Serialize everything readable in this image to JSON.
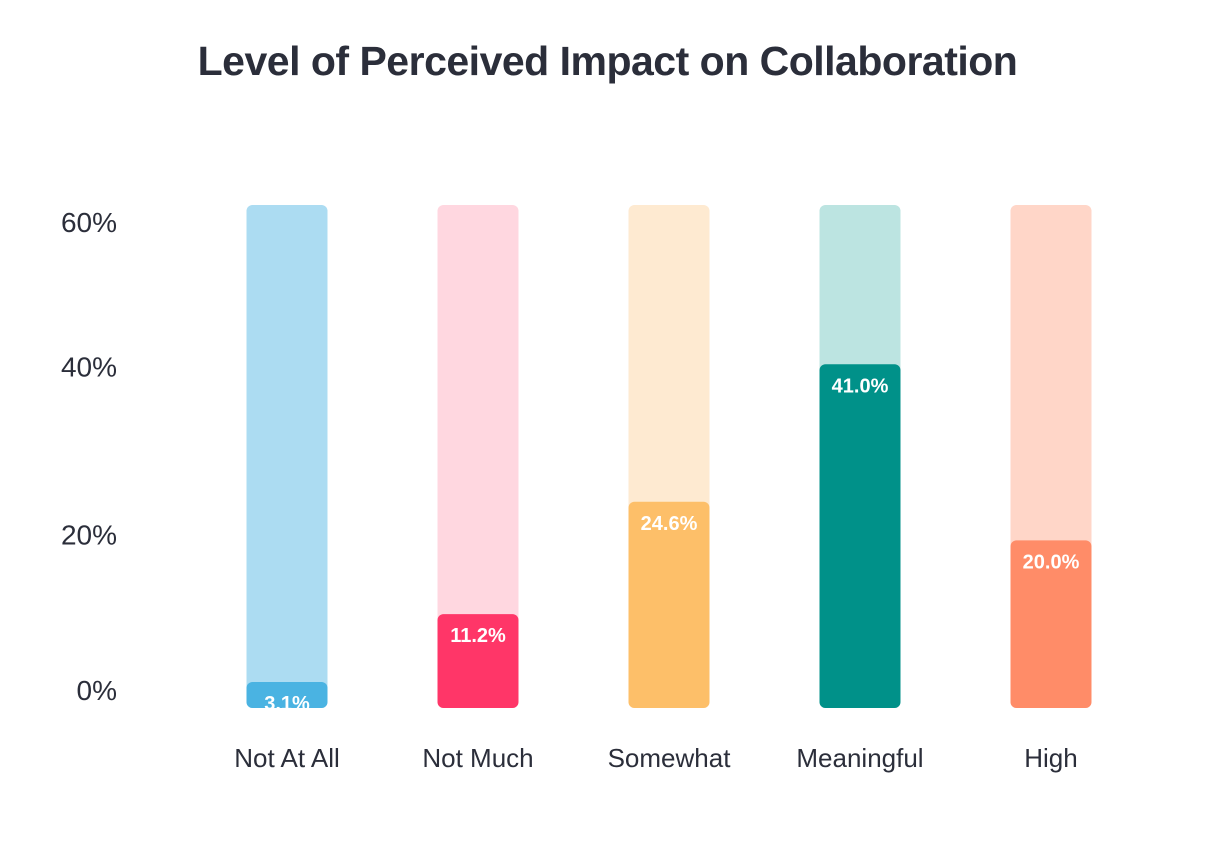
{
  "chart_data": {
    "type": "bar",
    "title": "Level of Perceived Impact on Collaboration",
    "xlabel": "",
    "ylabel": "",
    "ylim": [
      0,
      60
    ],
    "yticks": [
      0,
      20,
      40,
      60
    ],
    "ytick_labels": [
      "0%",
      "20%",
      "40%",
      "60%"
    ],
    "categories": [
      "Not At All",
      "Not Much",
      "Somewhat",
      "Meaningful",
      "High"
    ],
    "values": [
      3.1,
      11.2,
      24.6,
      41.0,
      20.0
    ],
    "data_labels": [
      "3.1%",
      "11.2%",
      "24.6%",
      "41.0%",
      "20.0%"
    ],
    "bar_colors": [
      "#4ab3e2",
      "#ff3668",
      "#fdbf69",
      "#009189",
      "#ff8c68"
    ],
    "track_colors": [
      "#acdcf2",
      "#ffd7e0",
      "#feead1",
      "#bce4e1",
      "#ffd6c8"
    ],
    "grid": false,
    "legend": "none"
  }
}
